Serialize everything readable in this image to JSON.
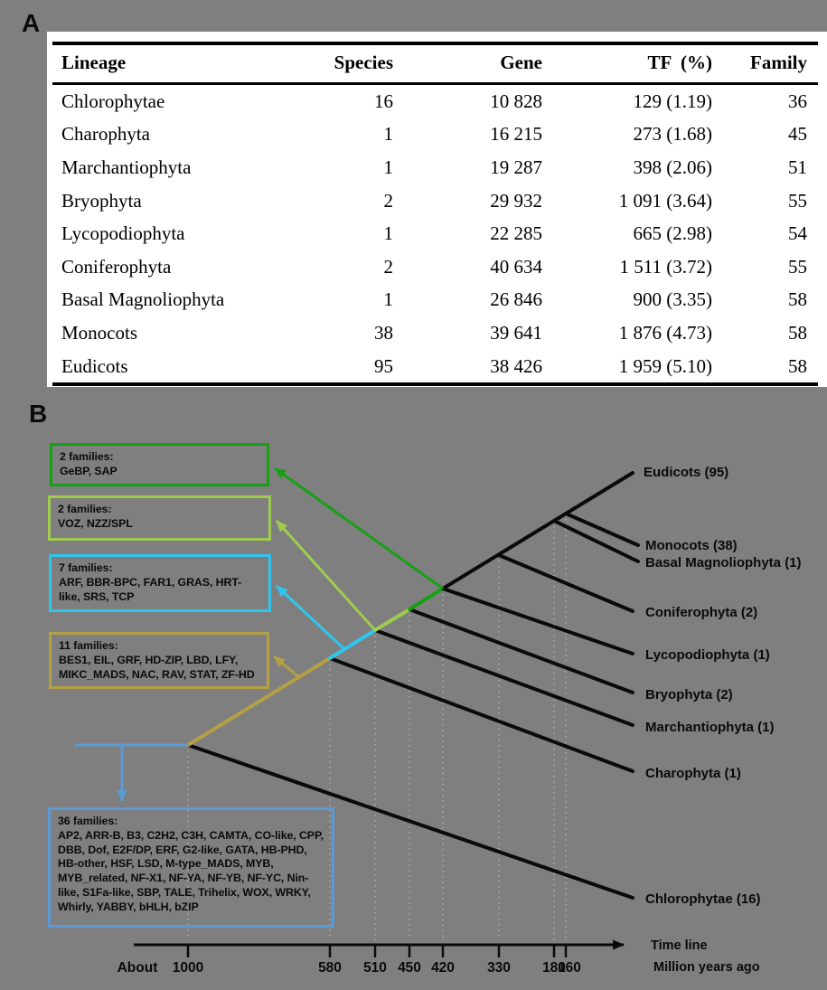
{
  "panel_a": {
    "label": "A",
    "table": {
      "headers": [
        "Lineage",
        "Species",
        "Gene",
        "TF  (%)",
        "Family"
      ],
      "rows": [
        [
          "Chlorophytae",
          "16",
          "10 828",
          "129 (1.19)",
          "36"
        ],
        [
          "Charophyta",
          "1",
          "16 215",
          "273 (1.68)",
          "45"
        ],
        [
          "Marchantiophyta",
          "1",
          "19 287",
          "398 (2.06)",
          "51"
        ],
        [
          "Bryophyta",
          "2",
          "29 932",
          "1 091 (3.64)",
          "55"
        ],
        [
          "Lycopodiophyta",
          "1",
          "22 285",
          "665 (2.98)",
          "54"
        ],
        [
          "Coniferophyta",
          "2",
          "40 634",
          "1 511 (3.72)",
          "55"
        ],
        [
          "Basal Magnoliophyta",
          "1",
          "26 846",
          "900 (3.35)",
          "58"
        ],
        [
          "Monocots",
          "38",
          "39 641",
          "1 876 (4.73)",
          "58"
        ],
        [
          "Eudicots",
          "95",
          "38 426",
          "1 959 (5.10)",
          "58"
        ]
      ]
    }
  },
  "panel_b": {
    "label": "B",
    "boxes": [
      {
        "title": "2 families:",
        "families": "GeBP, SAP",
        "color": "#16A016"
      },
      {
        "title": "2 families:",
        "families": "VOZ, NZZ/SPL",
        "color": "#9FCC4F"
      },
      {
        "title": "7 families:",
        "families": "ARF, BBR-BPC, FAR1, GRAS, HRT-like, SRS, TCP",
        "color": "#2EC6EF"
      },
      {
        "title": "11 families:",
        "families": "BES1, EIL, GRF, HD-ZIP, LBD, LFY, MIKC_MADS, NAC, RAV, STAT, ZF-HD",
        "color": "#B3A045"
      },
      {
        "title": "36 families:",
        "families": "AP2, ARR-B, B3, C2H2, C3H, CAMTA, CO-like, CPP, DBB, Dof, E2F/DP, ERF, G2-like, GATA, HB-PHD, HB-other, HSF, LSD, M-type_MADS, MYB, MYB_related, NF-X1, NF-YA, NF-YB, NF-YC, Nin-like, S1Fa-like, SBP, TALE, Trihelix, WOX, WRKY, Whirly, YABBY, bHLH, bZIP",
        "color": "#5B9BD5"
      }
    ],
    "taxa": [
      "Eudicots (95)",
      "Monocots (38)",
      "Basal Magnoliophyta (1)",
      "Coniferophyta (2)",
      "Lycopodiophyta (1)",
      "Bryophyta (2)",
      "Marchantiophyta (1)",
      "Charophyta (1)",
      "Chlorophytae (16)"
    ],
    "tree_color": "#0a0a0a",
    "timeline": {
      "about_label": "About",
      "ticks": [
        "1000",
        "580",
        "510",
        "450",
        "420",
        "330",
        "180",
        "160"
      ],
      "title": "Time line",
      "subtitle": "Million years ago"
    }
  }
}
